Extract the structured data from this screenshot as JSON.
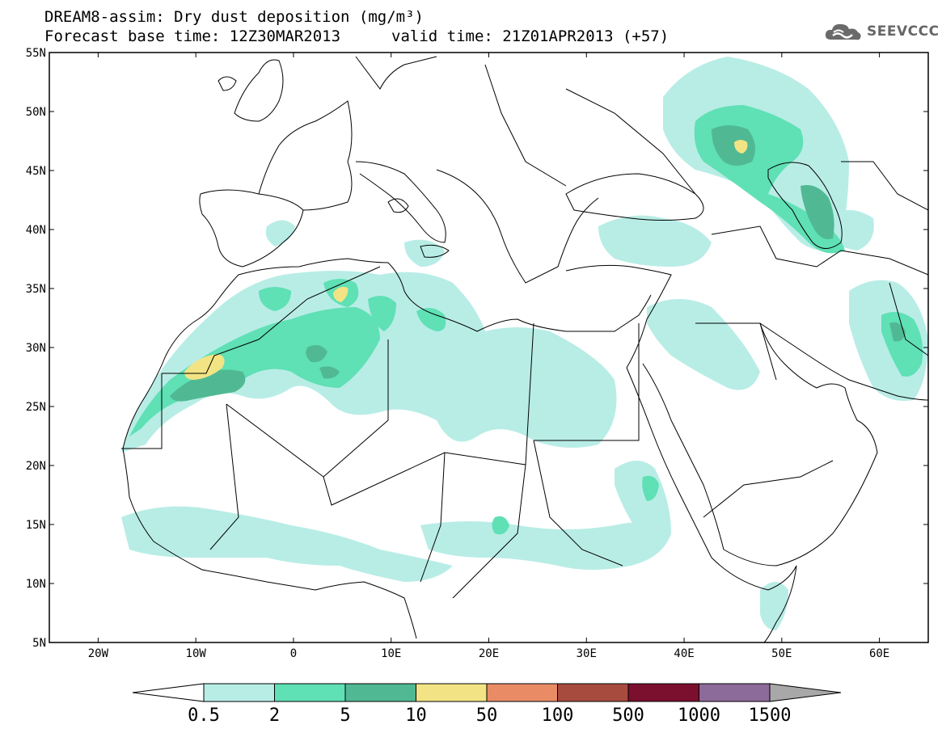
{
  "title": {
    "line1": "DREAM8-assim: Dry dust deposition (mg/m³)",
    "line2": "Forecast base time: 12Z30MAR2013",
    "valid": "valid time: 21Z01APR2013 (+57)"
  },
  "logo": {
    "text": "SEEVCCC",
    "icon": "cloud-icon",
    "color": "#666666"
  },
  "map": {
    "lon_range": [
      -25,
      65
    ],
    "lat_range": [
      5,
      55
    ],
    "lat_ticks": [
      "5N",
      "10N",
      "15N",
      "20N",
      "25N",
      "30N",
      "35N",
      "40N",
      "45N",
      "50N",
      "55N"
    ],
    "lon_ticks": [
      "20W",
      "10W",
      "0",
      "10E",
      "20E",
      "30E",
      "40E",
      "50E",
      "60E"
    ],
    "background": "#ffffff",
    "line_color": "#000000"
  },
  "colorbar": {
    "labels": [
      "0.5",
      "2",
      "5",
      "10",
      "50",
      "100",
      "500",
      "1000",
      "1500"
    ],
    "colors": [
      "#b8ede6",
      "#5fe0b5",
      "#50b993",
      "#f2e484",
      "#e98c66",
      "#a84b3f",
      "#7b0f2e",
      "#8c6a9a",
      "#a8a8a8"
    ]
  }
}
